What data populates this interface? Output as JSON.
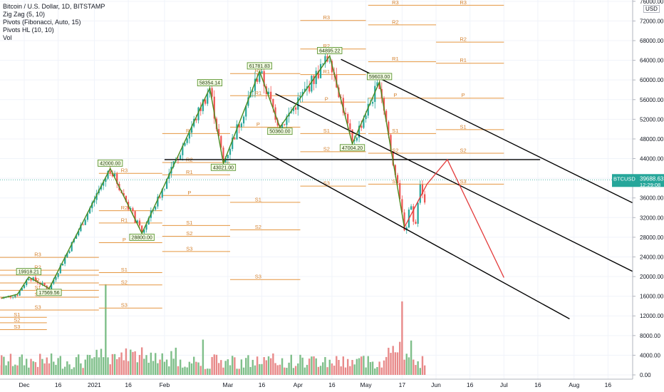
{
  "legend": {
    "symbol": "Bitcoin / U.S. Dollar, 1D, BITSTAMP",
    "zigzag": "Zig Zag (5, 10)",
    "pivots_fib": "Pivots (Fibonacci, Auto, 15)",
    "pivots_hl": "Pivots HL (10, 10)",
    "vol": "Vol"
  },
  "currency": "USD",
  "price_badge": {
    "ticker": "BTCUSD",
    "price": "39688.63",
    "countdown": "12:29:08",
    "value": 39688.63,
    "color": "#26a69a"
  },
  "colors": {
    "up": "#26a69a",
    "down": "#ef5350",
    "zigzag": "#4b8a1e",
    "pivot": "#e59640",
    "pivot_label": "#d4822f",
    "trend": "#000000",
    "projection": "#e33b3b",
    "volume_up": "#7fbf8a",
    "volume_down": "#e88a8a"
  },
  "chart_data": {
    "type": "candlestick",
    "title": "Bitcoin / U.S. Dollar, 1D, BITSTAMP",
    "x_ticks": [
      {
        "label": "Dec",
        "day": 0
      },
      {
        "label": "16",
        "day": 15
      },
      {
        "label": "2021",
        "day": 31
      },
      {
        "label": "16",
        "day": 46
      },
      {
        "label": "Feb",
        "day": 62
      },
      {
        "label": "Mar",
        "day": 90
      },
      {
        "label": "16",
        "day": 105
      },
      {
        "label": "Apr",
        "day": 121
      },
      {
        "label": "16",
        "day": 136
      },
      {
        "label": "May",
        "day": 151
      },
      {
        "label": "17",
        "day": 167
      },
      {
        "label": "Jun",
        "day": 182
      },
      {
        "label": "16",
        "day": 197
      },
      {
        "label": "Jul",
        "day": 212
      },
      {
        "label": "16",
        "day": 227
      },
      {
        "label": "Aug",
        "day": 243
      },
      {
        "label": "16",
        "day": 258
      }
    ],
    "y_ticks": [
      0,
      4000,
      8000,
      12000,
      16000,
      20000,
      24000,
      28000,
      32000,
      36000,
      40000,
      44000,
      48000,
      52000,
      56000,
      60000,
      64000,
      68000,
      72000,
      76000
    ],
    "y_ticks_price": [
      16000,
      20000,
      24000,
      28000,
      32000,
      36000,
      40000,
      44000,
      48000,
      52000,
      56000,
      60000,
      64000,
      68000,
      72000,
      76000
    ],
    "y_ticks_volume": [
      0,
      4000,
      8000,
      12000
    ],
    "x_start_date": "2020-12-01",
    "zigzag": [
      {
        "day": -10,
        "price": 15600
      },
      {
        "day": -3,
        "price": 16400
      },
      {
        "day": 2,
        "price": 19918.21,
        "label": "19918.21"
      },
      {
        "day": 11,
        "price": 17569.56,
        "label": "17569.56"
      },
      {
        "day": 38,
        "price": 42000.0,
        "label": "42000.00"
      },
      {
        "day": 52,
        "price": 28800.0,
        "label": "28800.00"
      },
      {
        "day": 82,
        "price": 58354.14,
        "label": "58354.14"
      },
      {
        "day": 88,
        "price": 43021.0,
        "label": "43021.00"
      },
      {
        "day": 104,
        "price": 61781.83,
        "label": "61781.83"
      },
      {
        "day": 113,
        "price": 50360.0,
        "label": "50360.00"
      },
      {
        "day": 135,
        "price": 64895.22,
        "label": "64895.22"
      },
      {
        "day": 145,
        "price": 47004.2,
        "label": "47004.20"
      },
      {
        "day": 157,
        "price": 59603.0,
        "label": "59603.00"
      },
      {
        "day": 168,
        "price": 30000
      }
    ],
    "pivot_groups": [
      {
        "day_start": -12,
        "day_end": 33,
        "levels": [
          [
            "R3",
            23900
          ],
          [
            "R2",
            21300
          ],
          [
            "R1",
            20300
          ],
          [
            "P",
            18700
          ],
          [
            "S1",
            17200
          ],
          [
            "S2",
            15800
          ],
          [
            "S3",
            13200
          ]
        ]
      },
      {
        "day_start": -12,
        "day_end": 10,
        "levels": [
          [
            "S1",
            11700
          ],
          [
            "S2",
            10600
          ],
          [
            "S3",
            9200
          ]
        ]
      },
      {
        "day_start": 33,
        "day_end": 61,
        "levels": [
          [
            "R3",
            41000
          ],
          [
            "R2",
            33400
          ],
          [
            "R1",
            30900
          ],
          [
            "P",
            26900
          ],
          [
            "S1",
            20800
          ],
          [
            "S2",
            18300
          ],
          [
            "S3",
            13600
          ]
        ]
      },
      {
        "day_start": 61,
        "day_end": 91,
        "levels": [
          [
            "R3",
            49100
          ],
          [
            "R2",
            43200
          ],
          [
            "R1",
            40700
          ],
          [
            "P",
            36500
          ],
          [
            "S1",
            30400
          ],
          [
            "S2",
            28200
          ],
          [
            "S3",
            25100
          ]
        ]
      },
      {
        "day_start": 91,
        "day_end": 122,
        "levels": [
          [
            "R2",
            61300
          ],
          [
            "R1",
            56800
          ],
          [
            "P",
            50400
          ],
          [
            "S1",
            35100
          ],
          [
            "S2",
            29500
          ],
          [
            "S3",
            19400
          ]
        ]
      },
      {
        "day_start": 122,
        "day_end": 151,
        "levels": [
          [
            "R3",
            72100
          ],
          [
            "R2",
            66300
          ],
          [
            "R1",
            61100
          ],
          [
            "P",
            55500
          ],
          [
            "S1",
            49100
          ],
          [
            "S2",
            45400
          ],
          [
            "S3",
            38400
          ]
        ]
      },
      {
        "day_start": 152,
        "day_end": 182,
        "levels": [
          [
            "R3",
            75200
          ],
          [
            "R2",
            71200
          ],
          [
            "R1",
            63700
          ],
          [
            "P",
            56300
          ],
          [
            "S1",
            49100
          ],
          [
            "S2",
            45100
          ],
          [
            "S3",
            38800
          ]
        ]
      },
      {
        "day_start": 182,
        "day_end": 212,
        "levels": [
          [
            "R3",
            75200
          ],
          [
            "R2",
            67700
          ],
          [
            "R1",
            63400
          ],
          [
            "P",
            56300
          ],
          [
            "S1",
            49900
          ],
          [
            "S2",
            45100
          ],
          [
            "S3",
            38800
          ]
        ]
      }
    ],
    "horizontal_line": {
      "day_start": 62,
      "day_end": 228,
      "price": 43800
    },
    "channel_lines": [
      {
        "from": {
          "day": 111,
          "price": 57200
        },
        "to": {
          "day": 270,
          "price": 20800
        }
      },
      {
        "from": {
          "day": 140,
          "price": 64200
        },
        "to": {
          "day": 283,
          "price": 31800
        }
      },
      {
        "from": {
          "day": 95,
          "price": 48300
        },
        "to": {
          "day": 241,
          "price": 11400
        }
      }
    ],
    "projection": [
      {
        "day": 168,
        "price": 30000
      },
      {
        "day": 178,
        "price": 38800
      },
      {
        "day": 187,
        "price": 43800
      },
      {
        "day": 212,
        "price": 19800
      }
    ],
    "volume_bars": [
      {
        "day": 36,
        "volume": 18500
      },
      {
        "day": 79,
        "volume": 7200
      },
      {
        "day": 167,
        "volume": 15000
      }
    ],
    "ohlc_note": "approximate",
    "last_price": 39688.63
  }
}
